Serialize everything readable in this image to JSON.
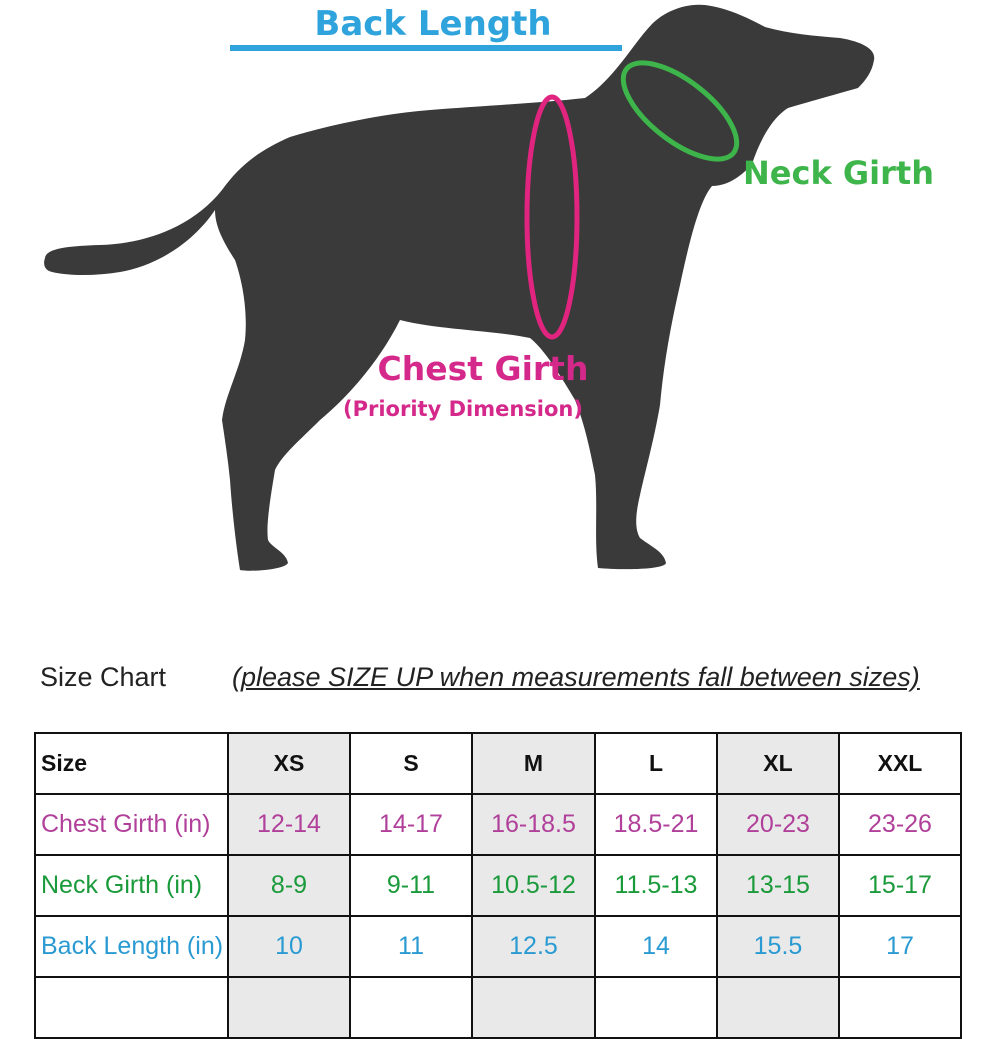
{
  "colors": {
    "silhouette": "#3a3a3a",
    "back": "#2ea3dc",
    "neck": "#3db54a",
    "chest_label": "#d4288a",
    "chest_ring": "#e0247f",
    "chest_row": "#b0409a",
    "neck_row": "#1a9a3a",
    "back_row": "#2a9ad2"
  },
  "diagram": {
    "back_length_label": "Back Length",
    "neck_girth_label": "Neck Girth",
    "chest_girth_label": "Chest Girth",
    "chest_priority_label": "(Priority Dimension)"
  },
  "chart": {
    "caption": "Size Chart",
    "note": "(please SIZE UP when measurements fall between sizes)"
  },
  "table": {
    "size_header": "Size",
    "sizes": [
      "XS",
      "S",
      "M",
      "L",
      "XL",
      "XXL"
    ],
    "rows": [
      {
        "label": "Chest Girth (in)",
        "values": [
          "12-14",
          "14-17",
          "16-18.5",
          "18.5-21",
          "20-23",
          "23-26"
        ]
      },
      {
        "label": "Neck Girth (in)",
        "values": [
          "8-9",
          "9-11",
          "10.5-12",
          "11.5-13",
          "13-15",
          "15-17"
        ]
      },
      {
        "label": "Back Length (in)",
        "values": [
          "10",
          "11",
          "12.5",
          "14",
          "15.5",
          "17"
        ]
      }
    ]
  }
}
